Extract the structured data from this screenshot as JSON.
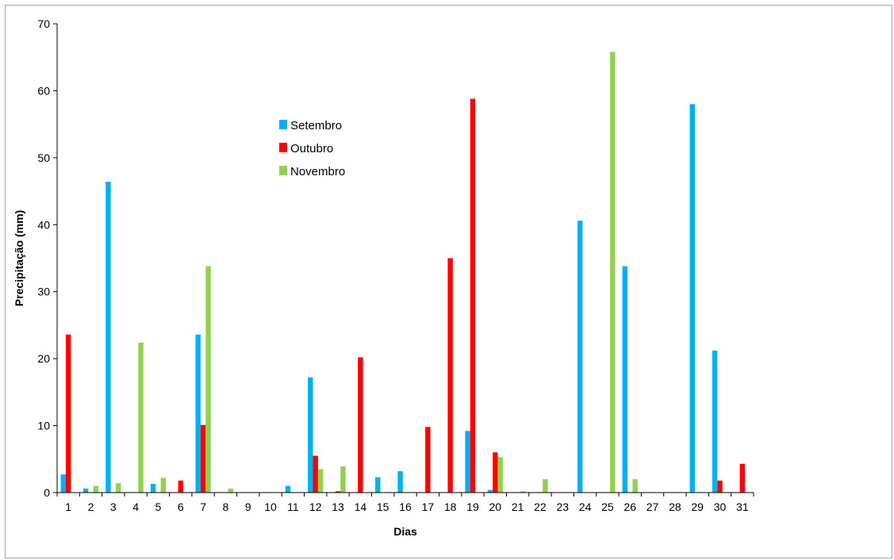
{
  "chart_data": {
    "type": "bar",
    "xlabel": "Dias",
    "ylabel": "Precipitação (mm)",
    "ylim": [
      0,
      70
    ],
    "yticks": [
      0,
      10,
      20,
      30,
      40,
      50,
      60,
      70
    ],
    "grid": false,
    "legend_position": "upper-center",
    "categories": [
      "1",
      "2",
      "3",
      "4",
      "5",
      "6",
      "7",
      "8",
      "9",
      "10",
      "11",
      "12",
      "13",
      "14",
      "15",
      "16",
      "17",
      "18",
      "19",
      "20",
      "21",
      "22",
      "23",
      "24",
      "25",
      "26",
      "27",
      "28",
      "29",
      "30",
      "31"
    ],
    "series": [
      {
        "name": "Setembro",
        "color": "#00b0f0",
        "values": [
          2.7,
          0.6,
          46.4,
          0,
          1.3,
          0,
          23.6,
          0,
          0,
          0,
          1.0,
          17.2,
          0,
          0,
          2.3,
          3.2,
          0,
          0,
          9.2,
          0.4,
          0,
          0,
          0,
          40.6,
          0,
          33.8,
          0,
          0,
          58.0,
          21.2,
          0
        ]
      },
      {
        "name": "Outubro",
        "color": "#ff0000",
        "values": [
          23.6,
          0,
          0,
          0,
          0,
          1.8,
          10.1,
          0,
          0,
          0,
          0,
          5.5,
          0.2,
          20.2,
          0,
          0,
          9.8,
          35.0,
          58.8,
          6.0,
          0,
          0,
          0,
          0,
          0,
          0,
          0,
          0,
          0,
          1.8,
          4.3
        ]
      },
      {
        "name": "Novembro",
        "color": "#92d050",
        "values": [
          0,
          1.0,
          1.4,
          22.4,
          2.2,
          0,
          33.8,
          0.6,
          0,
          0,
          0,
          3.5,
          3.9,
          0,
          0,
          0,
          0,
          0,
          0,
          5.3,
          0.2,
          2.0,
          0,
          0,
          65.8,
          2.0,
          0,
          0,
          0,
          0,
          0
        ]
      }
    ]
  }
}
